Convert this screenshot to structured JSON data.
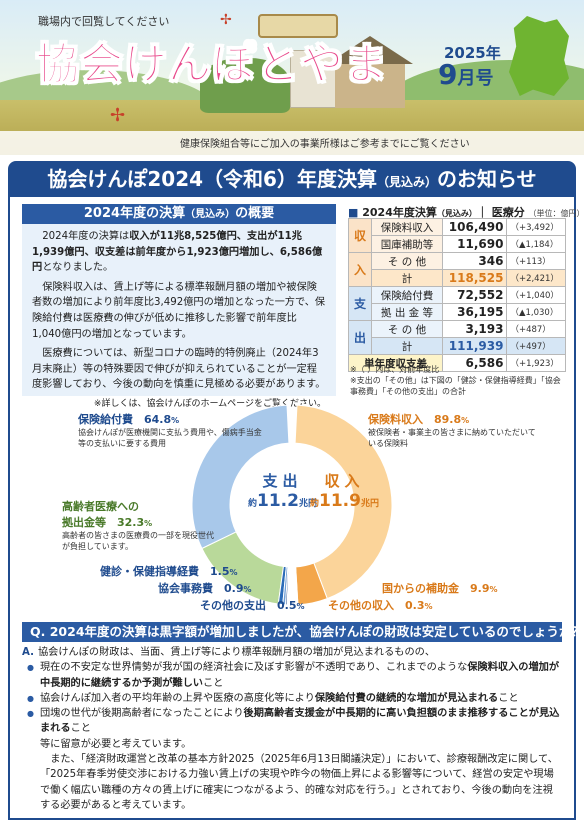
{
  "header": {
    "tagline": "職場内で回覧してください",
    "title": "協会けんぽとやま",
    "year": "2025年",
    "month": "9",
    "month_unit": "月号",
    "note": "健康保険組合等にご加入の事業所様はご参考までにご覧ください"
  },
  "banner": {
    "title_main": "協会けんぽ2024（令和6）年度決算",
    "title_small": "（見込み）",
    "title_end": "のお知らせ"
  },
  "overview": {
    "heading_main": "2024年度の決算",
    "heading_small": "（見込み）",
    "heading_end": "の概要",
    "p1_a": "2024年度の決算は",
    "p1_bold": "収入が11兆8,525億円、支出が11兆1,939億円、収支差は前年度から1,923億円増加し、6,586億円",
    "p1_b": "となりました。",
    "p2": "保険料収入は、賃上げ等による標準報酬月額の増加や被保険者数の増加により前年度比3,492億円の増加となった一方で、保険給付費は医療費の伸びが低めに推移した影響で前年度比1,040億円の増加となっています。",
    "p3": "医療費については、新型コロナの臨時的特例廃止（2024年3月末廃止）等の特殊要因で伸びが抑えられていることが一定程度影響しており、今後の動向を慎重に見極める必要があります。",
    "note": "※詳しくは、協会けんぽのホームページをご覧ください。"
  },
  "results_table": {
    "caption": "2024年度決算",
    "caption_small": "（見込み）",
    "caption_end": "｜ 医療分",
    "unit": "（単位：億円）",
    "income_group": [
      "収",
      "入"
    ],
    "income_rows": [
      {
        "label": "保険料収入",
        "value": "106,490",
        "change": "（+3,492）"
      },
      {
        "label": "国庫補助等",
        "value": "11,690",
        "change": "（▲1,184）"
      },
      {
        "label": "そ の 他",
        "value": "346",
        "change": "（+113）"
      }
    ],
    "income_total": {
      "label": "計",
      "value": "118,525",
      "change": "（+2,421）"
    },
    "expense_group": [
      "支",
      "出"
    ],
    "expense_rows": [
      {
        "label": "保険給付費",
        "value": "72,552",
        "change": "（+1,040）"
      },
      {
        "label": "拠 出 金 等",
        "value": "36,195",
        "change": "（▲1,030）"
      },
      {
        "label": "そ の 他",
        "value": "3,193",
        "change": "（+487）"
      }
    ],
    "expense_total": {
      "label": "計",
      "value": "111,939",
      "change": "（+497）"
    },
    "balance": {
      "label": "単年度収支差",
      "value": "6,586",
      "change": "（+1,923）"
    },
    "note1": "※（ ）内は、対前年度比",
    "note2": "※支出の「その他」は下図の「健診・保健指導経費」「協会事務費」「その他の支出」の合計"
  },
  "chart_data": [
    {
      "type": "pie",
      "title": "支出",
      "total_label": "約11.2兆円",
      "categories": [
        "保険給付費",
        "高齢者医療への拠出金等",
        "健診・保健指導経費",
        "協会事務費",
        "その他の支出"
      ],
      "values": [
        64.8,
        32.3,
        1.5,
        0.9,
        0.5
      ],
      "colors": [
        "#a8c8ea",
        "#b9d99a",
        "#2b6cb8",
        "#6f9fd6",
        "#1f4b8e"
      ]
    },
    {
      "type": "pie",
      "title": "収入",
      "total_label": "約11.9兆円",
      "categories": [
        "保険料収入",
        "国からの補助金",
        "その他の収入"
      ],
      "values": [
        89.8,
        9.9,
        0.3
      ],
      "colors": [
        "#fbd49a",
        "#f3a64a",
        "#d97a1a"
      ]
    }
  ],
  "chart_labels": {
    "exp_center_title": "支出",
    "exp_center_prefix": "約",
    "exp_center_num": "11.2",
    "exp_center_unit": "兆円",
    "inc_center_title": "収入",
    "inc_center_prefix": "約",
    "inc_center_num": "11.9",
    "inc_center_unit": "兆円",
    "benefits_name": "保険給付費",
    "benefits_pct": "64.8",
    "benefits_desc": "協会けんぽが医療機関に支払う費用や、傷病手当金等の支払いに要する費用",
    "elderly_name1": "高齢者医療への",
    "elderly_name2": "拠出金等",
    "elderly_pct": "32.3",
    "elderly_desc": "高齢者の皆さまの医療費の一部を現役世代が負担しています。",
    "checkup_name": "健診・保健指導経費",
    "checkup_pct": "1.5",
    "admin_name": "協会事務費",
    "admin_pct": "0.9",
    "other_exp_name": "その他の支出",
    "other_exp_pct": "0.5",
    "premium_name": "保険料収入",
    "premium_pct": "89.8",
    "premium_desc": "被保険者・事業主の皆さまに納めていただいている保険料",
    "subsidy_name": "国からの補助金",
    "subsidy_pct": "9.9",
    "other_inc_name": "その他の収入",
    "other_inc_pct": "0.3",
    "pct_unit": "%"
  },
  "qa": {
    "question": "Q. 2024年度の決算は黒字額が増加しましたが、協会けんぽの財政は安定しているのでしょうか？",
    "a_mark": "A.",
    "a_intro": "協会けんぽの財政は、当面、賃上げ等により標準報酬月額の増加が見込まれるものの、",
    "b1_a": "現在の不安定な世界情勢が我が国の経済社会に及ぼす影響が不透明であり、これまでのような",
    "b1_bold": "保険料収入の増加が中長期的に継続するか予測が難しい",
    "b1_b": "こと",
    "b2_a": "協会けんぽ加入者の平均年齢の上昇や医療の高度化等により",
    "b2_bold": "保険給付費の継続的な増加が見込まれる",
    "b2_b": "こと",
    "b3_a": "団塊の世代が後期高齢者になったことにより",
    "b3_bold": "後期高齢者支援金が中長期的に高い負担額のまま推移することが見込まれる",
    "b3_b": "こと",
    "p_after": "等に留意が必要と考えています。",
    "p_last": "また、「経済財政運営と改革の基本方針2025（2025年6月13日閣議決定）」において、診療報酬改定に関して、「2025年春季労使交渉における力強い賃上げの実現や昨今の物価上昇による影響等について、経営の安定や現場で働く幅広い職種の方々の賃上げに確実につながるよう、的確な対応を行う。」とされており、今後の動向を注視する必要があると考えています。"
  }
}
